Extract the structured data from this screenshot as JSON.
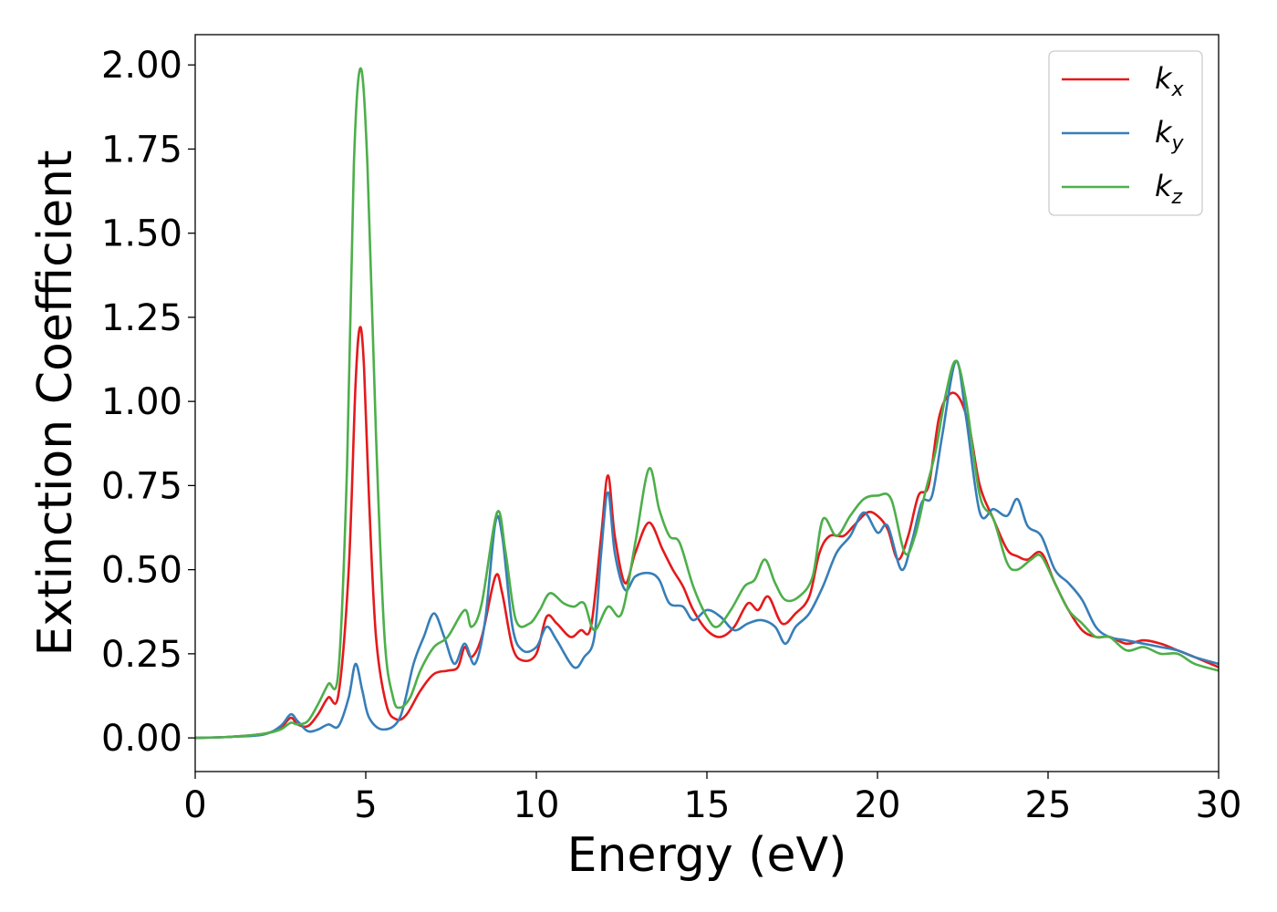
{
  "chart_data": {
    "type": "line",
    "title": "",
    "xlabel": "Energy (eV)",
    "ylabel": "Extinction Coefficient",
    "xlim": [
      0,
      30
    ],
    "ylim": [
      -0.1,
      2.09
    ],
    "xticks": [
      0,
      5,
      10,
      15,
      20,
      25,
      30
    ],
    "xtick_labels": [
      "0",
      "5",
      "10",
      "15",
      "20",
      "25",
      "30"
    ],
    "yticks": [
      0,
      0.25,
      0.5,
      0.75,
      1.0,
      1.25,
      1.5,
      1.75,
      2.0
    ],
    "ytick_labels": [
      "0.00",
      "0.25",
      "0.50",
      "0.75",
      "1.00",
      "1.25",
      "1.50",
      "1.75",
      "2.00"
    ],
    "grid": false,
    "legend_position": "top-right",
    "series": [
      {
        "name": "k_x",
        "label_main": "k",
        "label_sub": "x",
        "color": "#e41a1c",
        "points": [
          [
            0,
            0
          ],
          [
            1,
            0.003
          ],
          [
            2,
            0.012
          ],
          [
            2.5,
            0.03
          ],
          [
            2.8,
            0.06
          ],
          [
            3.0,
            0.04
          ],
          [
            3.3,
            0.035
          ],
          [
            3.6,
            0.07
          ],
          [
            3.9,
            0.12
          ],
          [
            4.2,
            0.13
          ],
          [
            4.5,
            0.5
          ],
          [
            4.7,
            1.05
          ],
          [
            4.83,
            1.22
          ],
          [
            4.95,
            1.1
          ],
          [
            5.1,
            0.7
          ],
          [
            5.3,
            0.3
          ],
          [
            5.6,
            0.1
          ],
          [
            5.9,
            0.055
          ],
          [
            6.2,
            0.07
          ],
          [
            6.6,
            0.14
          ],
          [
            7.0,
            0.19
          ],
          [
            7.4,
            0.2
          ],
          [
            7.7,
            0.21
          ],
          [
            7.9,
            0.27
          ],
          [
            8.1,
            0.24
          ],
          [
            8.4,
            0.3
          ],
          [
            8.8,
            0.48
          ],
          [
            9.0,
            0.43
          ],
          [
            9.3,
            0.27
          ],
          [
            9.6,
            0.23
          ],
          [
            10.0,
            0.25
          ],
          [
            10.3,
            0.36
          ],
          [
            10.6,
            0.34
          ],
          [
            11.0,
            0.3
          ],
          [
            11.3,
            0.32
          ],
          [
            11.6,
            0.33
          ],
          [
            11.9,
            0.6
          ],
          [
            12.1,
            0.78
          ],
          [
            12.3,
            0.6
          ],
          [
            12.6,
            0.46
          ],
          [
            12.9,
            0.55
          ],
          [
            13.3,
            0.64
          ],
          [
            13.7,
            0.56
          ],
          [
            14.0,
            0.5
          ],
          [
            14.3,
            0.45
          ],
          [
            14.6,
            0.38
          ],
          [
            15.0,
            0.32
          ],
          [
            15.4,
            0.3
          ],
          [
            15.8,
            0.33
          ],
          [
            16.2,
            0.4
          ],
          [
            16.5,
            0.38
          ],
          [
            16.8,
            0.42
          ],
          [
            17.2,
            0.34
          ],
          [
            17.6,
            0.37
          ],
          [
            18.0,
            0.42
          ],
          [
            18.3,
            0.55
          ],
          [
            18.6,
            0.6
          ],
          [
            19.0,
            0.6
          ],
          [
            19.3,
            0.63
          ],
          [
            19.7,
            0.67
          ],
          [
            20.0,
            0.66
          ],
          [
            20.3,
            0.62
          ],
          [
            20.6,
            0.53
          ],
          [
            20.9,
            0.6
          ],
          [
            21.2,
            0.72
          ],
          [
            21.5,
            0.75
          ],
          [
            21.8,
            0.95
          ],
          [
            22.1,
            1.02
          ],
          [
            22.4,
            1.01
          ],
          [
            22.7,
            0.92
          ],
          [
            23.0,
            0.75
          ],
          [
            23.4,
            0.65
          ],
          [
            23.8,
            0.56
          ],
          [
            24.1,
            0.54
          ],
          [
            24.4,
            0.53
          ],
          [
            24.8,
            0.55
          ],
          [
            25.2,
            0.46
          ],
          [
            25.6,
            0.38
          ],
          [
            26.0,
            0.32
          ],
          [
            26.4,
            0.3
          ],
          [
            26.8,
            0.3
          ],
          [
            27.3,
            0.28
          ],
          [
            27.8,
            0.29
          ],
          [
            28.3,
            0.28
          ],
          [
            28.8,
            0.26
          ],
          [
            29.3,
            0.24
          ],
          [
            30,
            0.21
          ]
        ]
      },
      {
        "name": "k_y",
        "label_main": "k",
        "label_sub": "y",
        "color": "#377eb8",
        "points": [
          [
            0,
            0
          ],
          [
            1,
            0.003
          ],
          [
            2,
            0.01
          ],
          [
            2.5,
            0.035
          ],
          [
            2.8,
            0.07
          ],
          [
            3.0,
            0.05
          ],
          [
            3.3,
            0.02
          ],
          [
            3.6,
            0.025
          ],
          [
            3.9,
            0.04
          ],
          [
            4.2,
            0.035
          ],
          [
            4.5,
            0.12
          ],
          [
            4.7,
            0.22
          ],
          [
            4.9,
            0.14
          ],
          [
            5.1,
            0.06
          ],
          [
            5.5,
            0.025
          ],
          [
            6.0,
            0.06
          ],
          [
            6.4,
            0.22
          ],
          [
            6.7,
            0.3
          ],
          [
            7.0,
            0.37
          ],
          [
            7.3,
            0.3
          ],
          [
            7.6,
            0.22
          ],
          [
            7.9,
            0.28
          ],
          [
            8.2,
            0.22
          ],
          [
            8.5,
            0.35
          ],
          [
            8.8,
            0.64
          ],
          [
            9.0,
            0.6
          ],
          [
            9.3,
            0.33
          ],
          [
            9.6,
            0.26
          ],
          [
            10.0,
            0.27
          ],
          [
            10.3,
            0.33
          ],
          [
            10.6,
            0.29
          ],
          [
            11.1,
            0.21
          ],
          [
            11.4,
            0.24
          ],
          [
            11.7,
            0.3
          ],
          [
            11.9,
            0.55
          ],
          [
            12.1,
            0.73
          ],
          [
            12.3,
            0.55
          ],
          [
            12.6,
            0.44
          ],
          [
            12.9,
            0.48
          ],
          [
            13.3,
            0.49
          ],
          [
            13.6,
            0.47
          ],
          [
            13.9,
            0.4
          ],
          [
            14.3,
            0.39
          ],
          [
            14.6,
            0.35
          ],
          [
            15.0,
            0.38
          ],
          [
            15.4,
            0.36
          ],
          [
            15.8,
            0.32
          ],
          [
            16.2,
            0.34
          ],
          [
            16.6,
            0.35
          ],
          [
            17.0,
            0.33
          ],
          [
            17.3,
            0.28
          ],
          [
            17.6,
            0.33
          ],
          [
            18.0,
            0.37
          ],
          [
            18.4,
            0.45
          ],
          [
            18.8,
            0.55
          ],
          [
            19.2,
            0.6
          ],
          [
            19.6,
            0.67
          ],
          [
            20.0,
            0.61
          ],
          [
            20.3,
            0.63
          ],
          [
            20.7,
            0.5
          ],
          [
            21.0,
            0.58
          ],
          [
            21.3,
            0.7
          ],
          [
            21.6,
            0.72
          ],
          [
            21.9,
            0.9
          ],
          [
            22.3,
            1.12
          ],
          [
            22.6,
            0.95
          ],
          [
            23.0,
            0.67
          ],
          [
            23.4,
            0.68
          ],
          [
            23.8,
            0.66
          ],
          [
            24.1,
            0.71
          ],
          [
            24.4,
            0.63
          ],
          [
            24.8,
            0.6
          ],
          [
            25.2,
            0.5
          ],
          [
            25.6,
            0.46
          ],
          [
            26.0,
            0.41
          ],
          [
            26.4,
            0.33
          ],
          [
            26.8,
            0.3
          ],
          [
            27.3,
            0.29
          ],
          [
            27.8,
            0.28
          ],
          [
            28.3,
            0.27
          ],
          [
            28.8,
            0.26
          ],
          [
            29.3,
            0.24
          ],
          [
            30,
            0.22
          ]
        ]
      },
      {
        "name": "k_z",
        "label_main": "k",
        "label_sub": "z",
        "color": "#4daf4a",
        "points": [
          [
            0,
            0
          ],
          [
            1,
            0.003
          ],
          [
            2,
            0.012
          ],
          [
            2.5,
            0.025
          ],
          [
            2.8,
            0.045
          ],
          [
            3.0,
            0.04
          ],
          [
            3.3,
            0.05
          ],
          [
            3.6,
            0.1
          ],
          [
            3.9,
            0.16
          ],
          [
            4.2,
            0.2
          ],
          [
            4.45,
            0.8
          ],
          [
            4.65,
            1.7
          ],
          [
            4.85,
            1.99
          ],
          [
            5.05,
            1.7
          ],
          [
            5.3,
            0.9
          ],
          [
            5.55,
            0.3
          ],
          [
            5.8,
            0.12
          ],
          [
            6.0,
            0.09
          ],
          [
            6.3,
            0.12
          ],
          [
            6.6,
            0.2
          ],
          [
            7.0,
            0.27
          ],
          [
            7.4,
            0.3
          ],
          [
            7.9,
            0.38
          ],
          [
            8.1,
            0.33
          ],
          [
            8.4,
            0.4
          ],
          [
            8.85,
            0.67
          ],
          [
            9.1,
            0.55
          ],
          [
            9.4,
            0.35
          ],
          [
            9.8,
            0.34
          ],
          [
            10.1,
            0.38
          ],
          [
            10.4,
            0.43
          ],
          [
            10.8,
            0.4
          ],
          [
            11.1,
            0.39
          ],
          [
            11.4,
            0.4
          ],
          [
            11.7,
            0.32
          ],
          [
            12.1,
            0.39
          ],
          [
            12.5,
            0.37
          ],
          [
            12.9,
            0.58
          ],
          [
            13.3,
            0.8
          ],
          [
            13.6,
            0.68
          ],
          [
            13.9,
            0.6
          ],
          [
            14.2,
            0.58
          ],
          [
            14.6,
            0.45
          ],
          [
            15.0,
            0.36
          ],
          [
            15.3,
            0.33
          ],
          [
            15.7,
            0.38
          ],
          [
            16.1,
            0.45
          ],
          [
            16.4,
            0.47
          ],
          [
            16.7,
            0.53
          ],
          [
            17.0,
            0.46
          ],
          [
            17.3,
            0.41
          ],
          [
            17.7,
            0.42
          ],
          [
            18.1,
            0.48
          ],
          [
            18.4,
            0.65
          ],
          [
            18.8,
            0.6
          ],
          [
            19.2,
            0.66
          ],
          [
            19.6,
            0.71
          ],
          [
            20.0,
            0.72
          ],
          [
            20.4,
            0.71
          ],
          [
            20.8,
            0.55
          ],
          [
            21.1,
            0.6
          ],
          [
            21.4,
            0.73
          ],
          [
            21.7,
            0.85
          ],
          [
            22.0,
            1.02
          ],
          [
            22.3,
            1.12
          ],
          [
            22.6,
            1.0
          ],
          [
            23.0,
            0.72
          ],
          [
            23.4,
            0.65
          ],
          [
            23.8,
            0.52
          ],
          [
            24.1,
            0.5
          ],
          [
            24.5,
            0.53
          ],
          [
            24.8,
            0.54
          ],
          [
            25.2,
            0.46
          ],
          [
            25.6,
            0.38
          ],
          [
            26.0,
            0.34
          ],
          [
            26.4,
            0.3
          ],
          [
            26.8,
            0.3
          ],
          [
            27.3,
            0.26
          ],
          [
            27.8,
            0.27
          ],
          [
            28.3,
            0.25
          ],
          [
            28.8,
            0.25
          ],
          [
            29.3,
            0.22
          ],
          [
            30,
            0.2
          ]
        ]
      }
    ]
  }
}
